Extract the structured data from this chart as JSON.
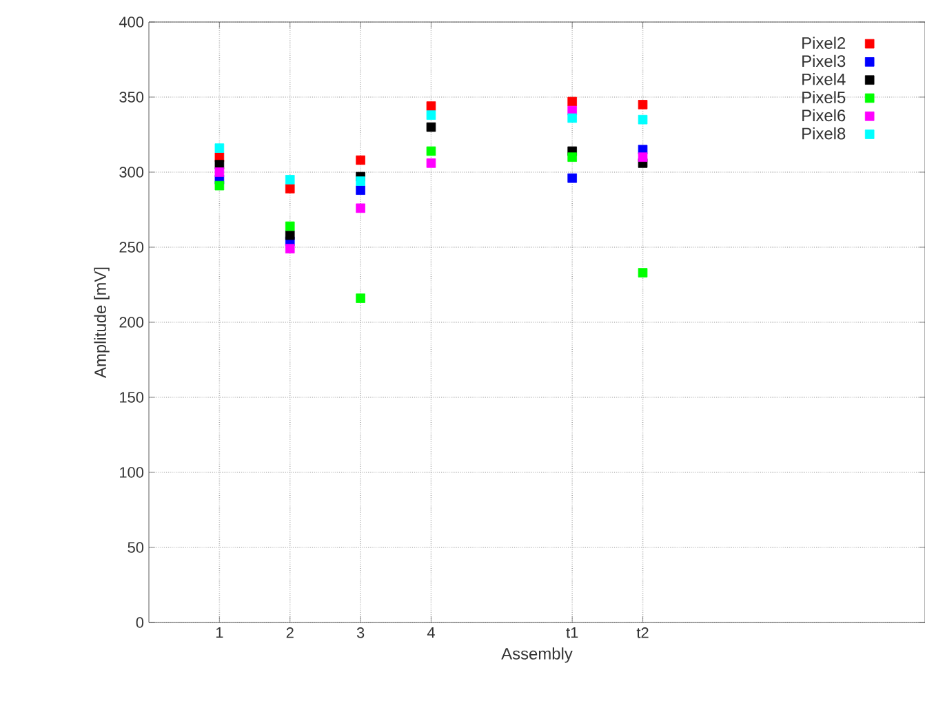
{
  "chart_data": {
    "type": "scatter",
    "xlabel": "Assembly",
    "ylabel": "Amplitude [mV]",
    "x": [
      1,
      2,
      3,
      4,
      6,
      7
    ],
    "xlim": [
      0,
      11
    ],
    "ylim": [
      0,
      400
    ],
    "xticks": [
      {
        "value": 1,
        "label": "1"
      },
      {
        "value": 2,
        "label": "2"
      },
      {
        "value": 3,
        "label": "3"
      },
      {
        "value": 4,
        "label": "4"
      },
      {
        "value": 6,
        "label": "t1"
      },
      {
        "value": 7,
        "label": "t2"
      }
    ],
    "yticks": [
      0,
      50,
      100,
      150,
      200,
      250,
      300,
      350,
      400
    ],
    "grid": true,
    "legend": "top right",
    "marker": "square",
    "series": [
      {
        "name": "Pixel2",
        "color": "#ff0000",
        "values": [
          310,
          289,
          308,
          344,
          347,
          345
        ]
      },
      {
        "name": "Pixel3",
        "color": "#0000ff",
        "values": [
          295,
          254,
          288,
          null,
          296,
          315
        ]
      },
      {
        "name": "Pixel4",
        "color": "#000000",
        "values": [
          305,
          258,
          297,
          330,
          314,
          306
        ]
      },
      {
        "name": "Pixel5",
        "color": "#00ff00",
        "values": [
          291,
          264,
          216,
          314,
          310,
          233
        ]
      },
      {
        "name": "Pixel6",
        "color": "#ff00ff",
        "values": [
          300,
          249,
          276,
          306,
          341,
          310
        ]
      },
      {
        "name": "Pixel8",
        "color": "#00ffff",
        "values": [
          316,
          295,
          294,
          338,
          336,
          335
        ]
      }
    ]
  }
}
